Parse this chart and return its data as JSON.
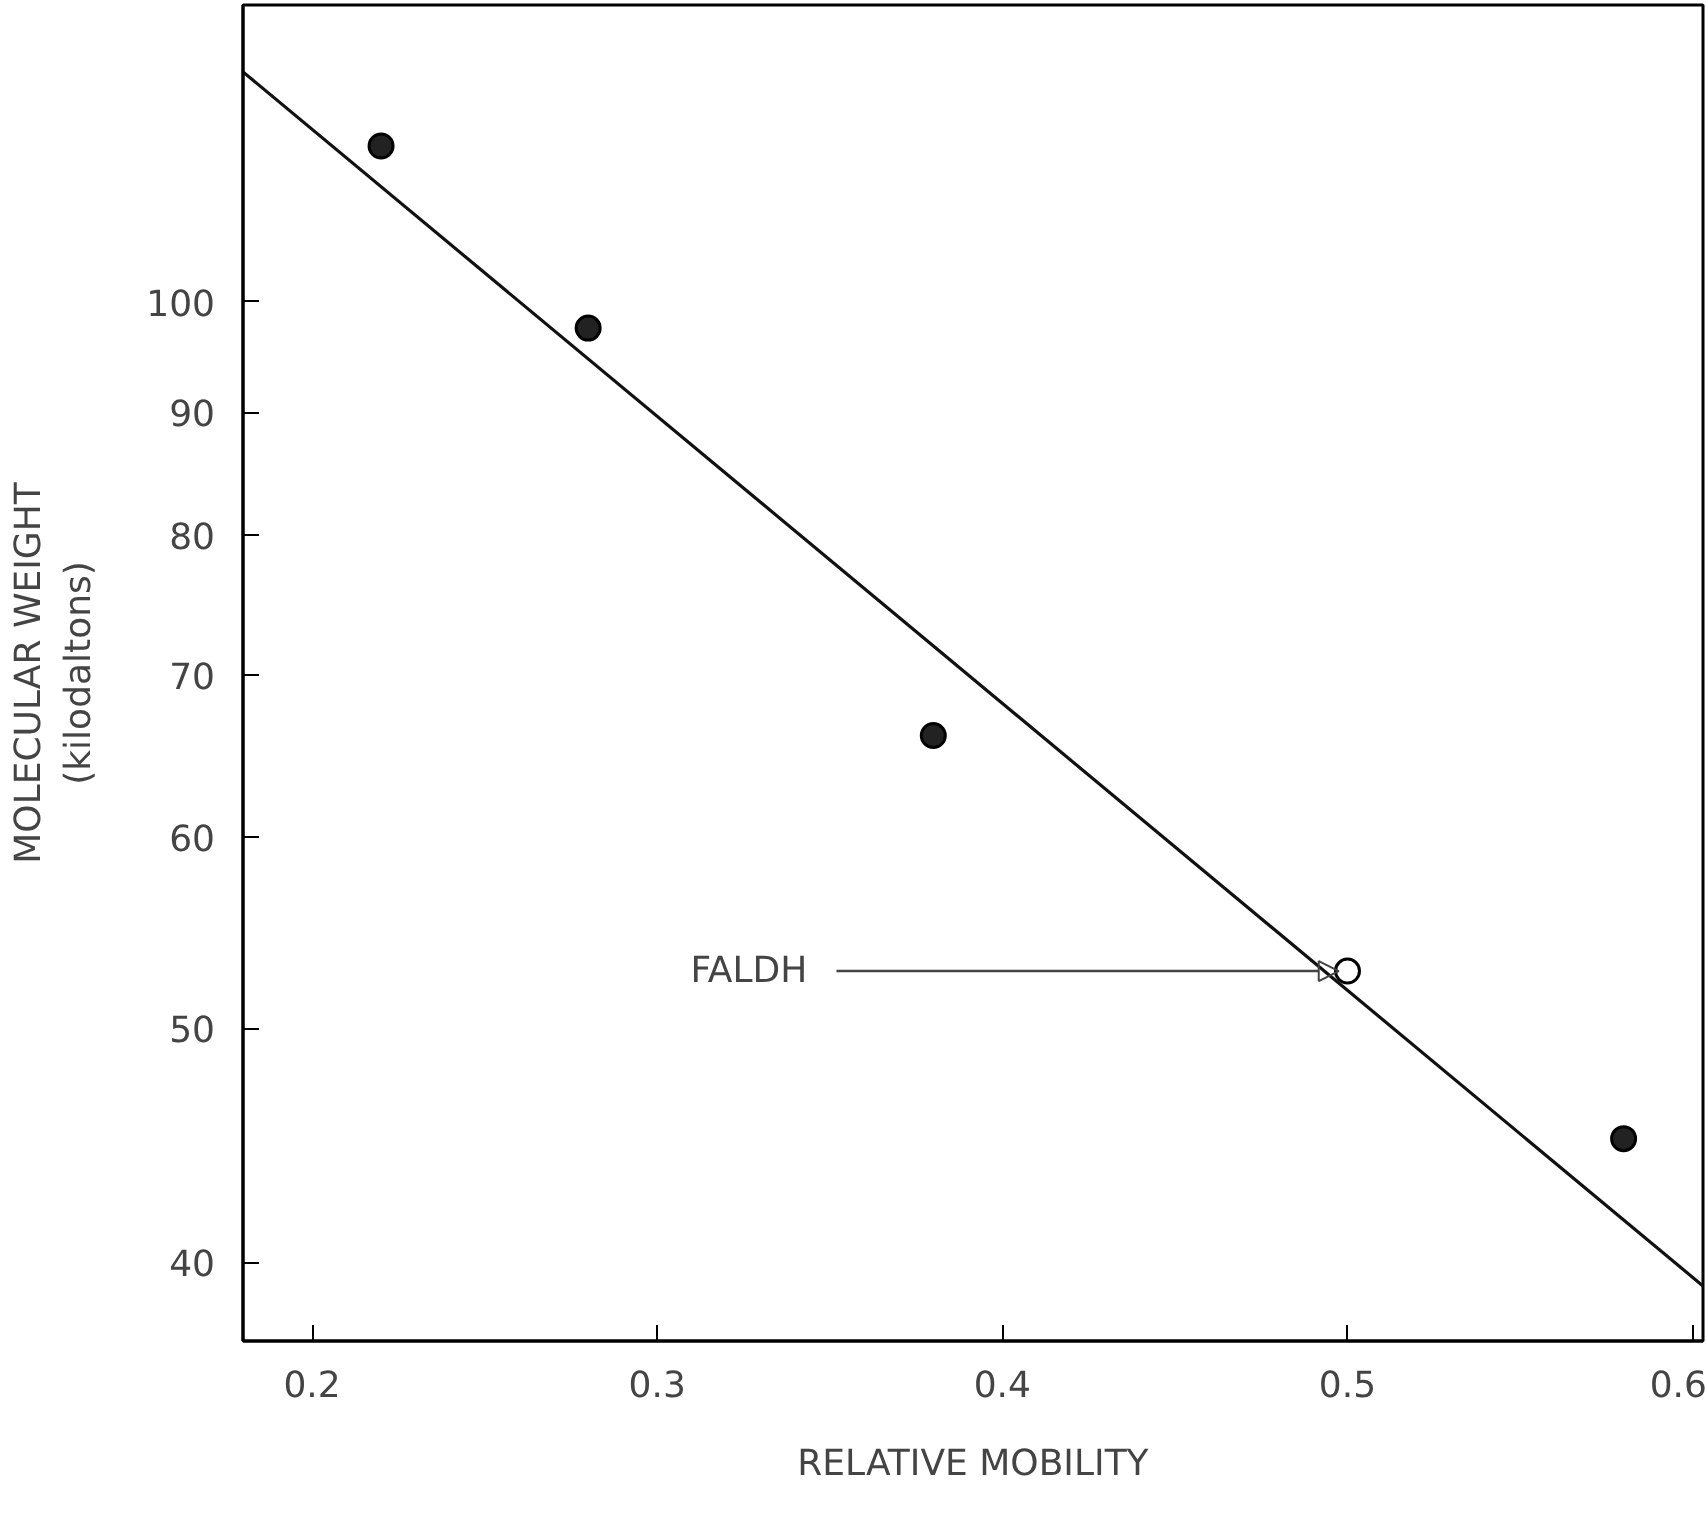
{
  "chart_data": {
    "type": "scatter",
    "xlabel": "RELATIVE MOBILITY",
    "ylabel": "MOLECULAR WEIGHT\n(kilodaltons)",
    "log": "y",
    "grid": false,
    "xlim": [
      0.18,
      0.603
    ],
    "ylim": [
      37.1,
      132.7
    ],
    "xticks": [
      0.2,
      0.3,
      0.4,
      0.5,
      0.6
    ],
    "yticks": [
      40,
      50,
      60,
      70,
      80,
      90,
      100
    ],
    "series": [
      {
        "marker": "circle",
        "color": "#222222",
        "x": [
          0.22,
          0.28,
          0.38,
          0.58
        ],
        "values": [
          116,
          97.5,
          66.1,
          45.0
        ]
      },
      {
        "marker": "circle",
        "color": "#ffffff",
        "x": [
          0.5
        ],
        "values": [
          52.8
        ]
      },
      {
        "type": "line",
        "color": "#111111",
        "x": [
          0.18,
          0.603
        ],
        "values": [
          124.5,
          39.1
        ]
      }
    ],
    "annotations": [
      {
        "text": "FALDH",
        "x": 0.5,
        "y": 52.8
      }
    ]
  }
}
